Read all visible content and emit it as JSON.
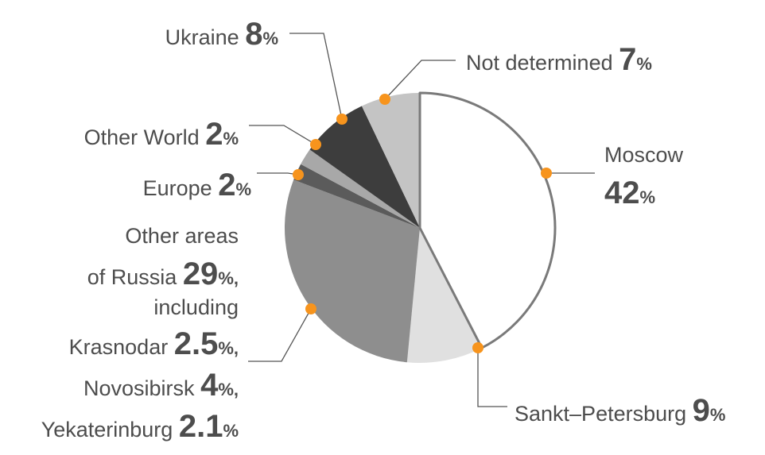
{
  "chart_data": {
    "type": "pie",
    "title": "",
    "slices": [
      {
        "label": "Moscow",
        "value": 42,
        "display": "42",
        "color": "#ffffff"
      },
      {
        "label": "Sankt–Petersburg",
        "value": 9,
        "display": "9",
        "color": "#e0e0e0"
      },
      {
        "label": "Other areas of Russia",
        "value": 29,
        "display": "29",
        "color": "#8e8e8e"
      },
      {
        "label": "Europe",
        "value": 2,
        "display": "2",
        "color": "#5b5b5b"
      },
      {
        "label": "Other World",
        "value": 2,
        "display": "2",
        "color": "#a8a8a8"
      },
      {
        "label": "Ukraine",
        "value": 8,
        "display": "8",
        "color": "#3d3d3d"
      },
      {
        "label": "Not determined",
        "value": 7,
        "display": "7",
        "color": "#c4c4c4"
      }
    ],
    "percent_sign": "%",
    "marker_color": "#f7941d",
    "outline_color": "#7a7a7a"
  },
  "labels": {
    "ukraine": {
      "name": "Ukraine ",
      "value": "8",
      "unit": "%"
    },
    "not_determined": {
      "name": "Not determined ",
      "value": "7",
      "unit": "%"
    },
    "other_world": {
      "name": "Other World ",
      "value": "2",
      "unit": "%"
    },
    "europe": {
      "name": "Europe ",
      "value": "2",
      "unit": "%"
    },
    "moscow": {
      "name": "Moscow",
      "value": "42",
      "unit": "%"
    },
    "sankt_petersburg": {
      "name": "Sankt–Petersburg ",
      "value": "9",
      "unit": "%"
    },
    "russia": {
      "line1": "Other areas",
      "line2_name": "of Russia ",
      "line2_value": "29",
      "line2_unit": "%,",
      "line3": "including",
      "krasnodar": {
        "name": "Krasnodar ",
        "value": "2.5",
        "unit": "%,"
      },
      "novosibirsk": {
        "name": "Novosibirsk ",
        "value": "4",
        "unit": "%,"
      },
      "yekaterinburg": {
        "name": "Yekaterinburg ",
        "value": "2.1",
        "unit": "%"
      }
    }
  }
}
